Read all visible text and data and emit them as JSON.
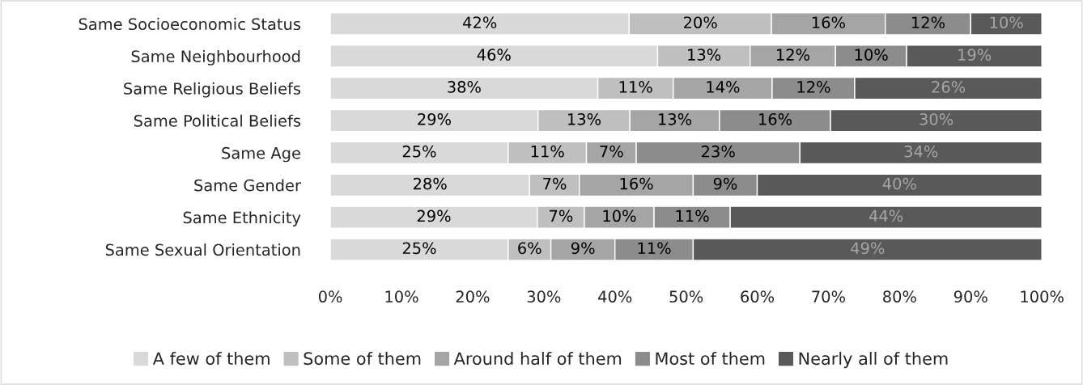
{
  "chart_data": {
    "type": "bar",
    "orientation": "horizontal",
    "stacked": true,
    "categories": [
      "Same Socioeconomic Status",
      "Same Neighbourhood",
      "Same Religious Beliefs",
      "Same Political Beliefs",
      "Same Age",
      "Same Gender",
      "Same Ethnicity",
      "Same Sexual Orientation"
    ],
    "series": [
      {
        "name": "A few of them",
        "color": "#d9d9d9",
        "values": [
          42,
          46,
          37.6,
          29.2,
          25,
          28,
          29.1,
          25
        ],
        "value_labels": [
          "42%",
          "46%",
          "38%",
          "29%",
          "25%",
          "28%",
          "29%",
          "25%"
        ]
      },
      {
        "name": "Some of them",
        "color": "#bfbfbf",
        "values": [
          20,
          13,
          10.6,
          12.9,
          11,
          7,
          6.6,
          6
        ],
        "value_labels": [
          "20%",
          "13%",
          "11%",
          "13%",
          "11%",
          "7%",
          "7%",
          "6%"
        ]
      },
      {
        "name": "Around half of them",
        "color": "#a5a5a5",
        "values": [
          16,
          12,
          13.9,
          12.6,
          7,
          16,
          9.8,
          9
        ],
        "value_labels": [
          "16%",
          "12%",
          "14%",
          "13%",
          "7%",
          "16%",
          "10%",
          "9%"
        ]
      },
      {
        "name": "Most of them",
        "color": "#8c8c8c",
        "values": [
          12,
          10,
          11.6,
          15.6,
          23,
          9,
          10.7,
          11
        ],
        "value_labels": [
          "12%",
          "10%",
          "12%",
          "16%",
          "23%",
          "9%",
          "11%",
          "11%"
        ]
      },
      {
        "name": "Nearly all of them",
        "color": "#595959",
        "values": [
          10,
          19,
          26.3,
          29.7,
          34,
          40,
          43.8,
          49
        ],
        "value_labels": [
          "10%",
          "19%",
          "26%",
          "30%",
          "34%",
          "40%",
          "44%",
          "49%"
        ]
      }
    ],
    "xlim": [
      0,
      100
    ],
    "xticks": [
      {
        "value": 0,
        "label": "0%"
      },
      {
        "value": 10,
        "label": "10%"
      },
      {
        "value": 20,
        "label": "20%"
      },
      {
        "value": 30,
        "label": "30%"
      },
      {
        "value": 40,
        "label": "40%"
      },
      {
        "value": 50,
        "label": "50%"
      },
      {
        "value": 60,
        "label": "60%"
      },
      {
        "value": 70,
        "label": "70%"
      },
      {
        "value": 80,
        "label": "80%"
      },
      {
        "value": 90,
        "label": "90%"
      },
      {
        "value": 100,
        "label": "100%"
      }
    ],
    "legend": "bottom"
  }
}
